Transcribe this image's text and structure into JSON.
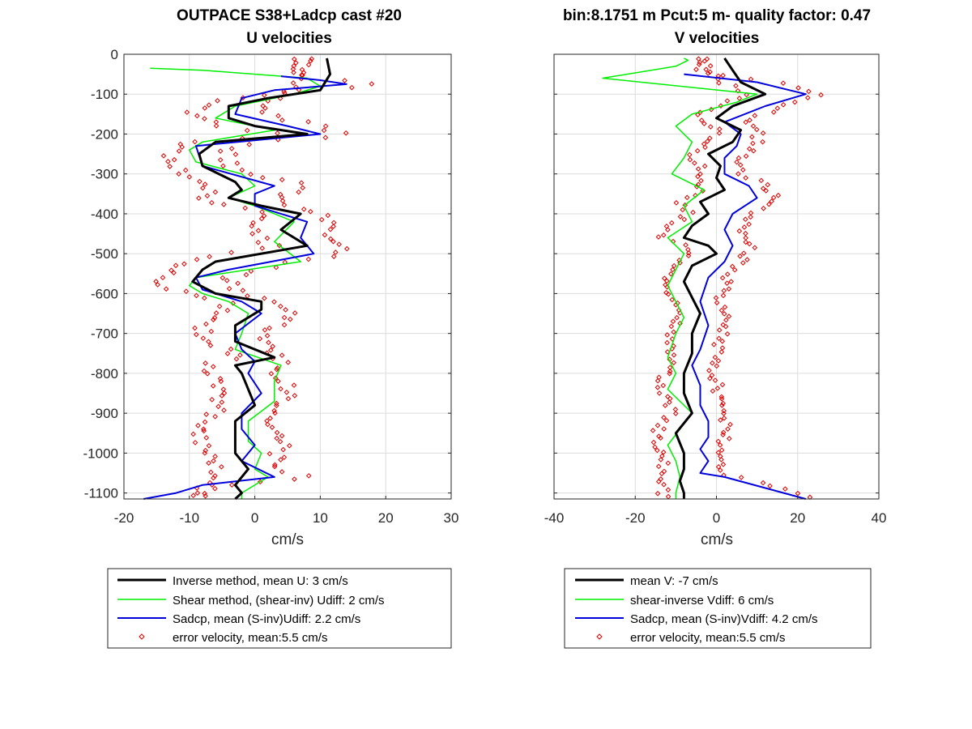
{
  "colors": {
    "inverse": "#000000",
    "shear": "#00ee00",
    "sadcp": "#0000dd",
    "error": "#dd0000",
    "grid": "#dcdcdc",
    "axis": "#262626"
  },
  "chart_data": [
    {
      "type": "line",
      "title": [
        "OUTPACE S38+Ladcp cast #20",
        "U velocities"
      ],
      "xlabel": "cm/s",
      "ylabel": "",
      "xlim": [
        -20,
        30
      ],
      "ylim": [
        -1115,
        0
      ],
      "xticks": [
        -20,
        -10,
        0,
        10,
        20,
        30
      ],
      "yticks": [
        0,
        -100,
        -200,
        -300,
        -400,
        -500,
        -600,
        -700,
        -800,
        -900,
        -1000,
        -1100
      ],
      "grid": true,
      "legend_entries": [
        "Inverse method, mean U:  3 cm/s",
        "Shear method, (shear-inv)  Udiff:  2 cm/s",
        "Sadcp, mean (S-inv)Udiff: 2.2 cm/s",
        "error velocity, mean:5.5 cm/s"
      ],
      "series": [
        {
          "key": "inverse",
          "depth": [
            -10,
            -50,
            -90,
            -110,
            -130,
            -160,
            -180,
            -200,
            -220,
            -250,
            -280,
            -320,
            -340,
            -360,
            -380,
            -400,
            -440,
            -480,
            -520,
            -540,
            -570,
            -600,
            -620,
            -640,
            -680,
            -720,
            -760,
            -780,
            -800,
            -840,
            -880,
            -920,
            -960,
            -1000,
            -1040,
            -1080,
            -1100,
            -1115
          ],
          "values": [
            11,
            11.5,
            10,
            2,
            -4,
            -4,
            0,
            8,
            -6,
            -8.5,
            -8,
            -3,
            -2,
            -4,
            1,
            7,
            4,
            8,
            -6,
            -8,
            -9.5,
            -6,
            1,
            1,
            -3,
            -3,
            3,
            -3,
            -2,
            -1,
            0,
            -3,
            -3,
            -3,
            -1,
            -3,
            -2,
            -3
          ]
        },
        {
          "key": "shear",
          "depth": [
            -35,
            -40,
            -60,
            -80,
            -100,
            -130,
            -160,
            -190,
            -220,
            -240,
            -270,
            -300,
            -330,
            -360,
            -380,
            -420,
            -470,
            -520,
            -560,
            -580,
            -600,
            -620,
            -650,
            -700,
            -740,
            -780,
            -820,
            -870,
            -920,
            -970,
            -1000,
            -1040,
            -1060,
            -1100,
            -1115
          ],
          "values": [
            -16,
            -8,
            8,
            10,
            6,
            -3,
            -6,
            3,
            -8,
            -10,
            -9,
            -2,
            0,
            -4,
            0,
            6,
            3,
            7,
            -9,
            -10,
            -8,
            -4,
            -1,
            -2,
            -3,
            4,
            3,
            3,
            -1,
            -1,
            1,
            0,
            2,
            -2,
            -2
          ]
        },
        {
          "key": "sadcp",
          "depth": [
            -55,
            -65,
            -75,
            -90,
            -110,
            -150,
            -180,
            -200,
            -230,
            -280,
            -330,
            -350,
            -380,
            -420,
            -460,
            -500,
            -540,
            -560,
            -590,
            -620,
            -650,
            -700,
            -740,
            -770,
            -800,
            -850,
            -900,
            -940,
            -980,
            -1020,
            -1060,
            -1080,
            -1100,
            -1115
          ],
          "values": [
            4,
            10,
            14,
            3,
            -2,
            -3,
            5,
            10,
            -9,
            -8,
            3,
            0,
            0,
            8,
            7,
            9,
            -4,
            -9,
            -8,
            -2,
            1,
            -3,
            -2,
            0,
            -1,
            1,
            -2,
            -2,
            0,
            -2,
            3,
            -8,
            -12,
            -17
          ]
        }
      ]
    },
    {
      "type": "line",
      "title": [
        "bin:8.1751 m  Pcut:5 m- quality factor:  0.47",
        "V velocities"
      ],
      "xlabel": "cm/s",
      "ylabel": "",
      "xlim": [
        -40,
        40
      ],
      "ylim": [
        -1115,
        0
      ],
      "xticks": [
        -40,
        -20,
        0,
        20,
        40
      ],
      "yticks": [
        0,
        -100,
        -200,
        -300,
        -400,
        -500,
        -600,
        -700,
        -800,
        -900,
        -1000,
        -1100
      ],
      "grid": true,
      "legend_entries": [
        "mean V:  -7 cm/s",
        "shear-inverse Vdiff:  6 cm/s",
        "Sadcp, mean (S-inv)Vdiff: 4.2 cm/s",
        "error velocity, mean:5.5 cm/s"
      ],
      "series": [
        {
          "key": "inverse",
          "depth": [
            -10,
            -40,
            -70,
            -100,
            -130,
            -160,
            -190,
            -220,
            -250,
            -280,
            -310,
            -340,
            -370,
            -400,
            -430,
            -460,
            -480,
            -500,
            -530,
            -570,
            -610,
            -650,
            -700,
            -750,
            -800,
            -850,
            -900,
            -950,
            -1000,
            -1040,
            -1070,
            -1100,
            -1115
          ],
          "values": [
            2,
            4,
            6,
            12,
            4,
            0,
            6,
            4,
            -2,
            1,
            0,
            2,
            -4,
            -2,
            -6,
            -8,
            -2,
            0,
            -6,
            -8,
            -6,
            -4,
            -6,
            -6,
            -8,
            -8,
            -6,
            -10,
            -8,
            -8,
            -9,
            -8,
            -8
          ]
        },
        {
          "key": "shear",
          "depth": [
            -10,
            -15,
            -30,
            -60,
            -100,
            -120,
            -150,
            -180,
            -220,
            -260,
            -300,
            -340,
            -380,
            -420,
            -460,
            -500,
            -540,
            -580,
            -620,
            -660,
            -700,
            -760,
            -800,
            -840,
            -900,
            -940,
            -980,
            -1020,
            -1060,
            -1100,
            -1115
          ],
          "values": [
            -8,
            -7,
            -10,
            -28,
            10,
            5,
            -6,
            -10,
            -6,
            -8,
            -11,
            -3,
            -8,
            -6,
            -12,
            -8,
            -10,
            -12,
            -10,
            -8,
            -10,
            -12,
            -10,
            -12,
            -6,
            -9,
            -12,
            -10,
            -9,
            -10,
            -10
          ]
        },
        {
          "key": "sadcp",
          "depth": [
            -50,
            -70,
            -90,
            -100,
            -130,
            -170,
            -200,
            -230,
            -260,
            -300,
            -330,
            -360,
            -400,
            -440,
            -480,
            -520,
            -560,
            -620,
            -680,
            -740,
            -780,
            -830,
            -880,
            -920,
            -960,
            -990,
            -1020,
            -1050,
            -1060,
            -1115
          ],
          "values": [
            -8,
            10,
            18,
            22,
            12,
            2,
            6,
            5,
            2,
            2,
            8,
            10,
            4,
            2,
            4,
            2,
            -2,
            -4,
            -2,
            -4,
            -6,
            -4,
            -4,
            -2,
            -2,
            -4,
            -2,
            -4,
            2,
            22
          ]
        }
      ]
    }
  ]
}
